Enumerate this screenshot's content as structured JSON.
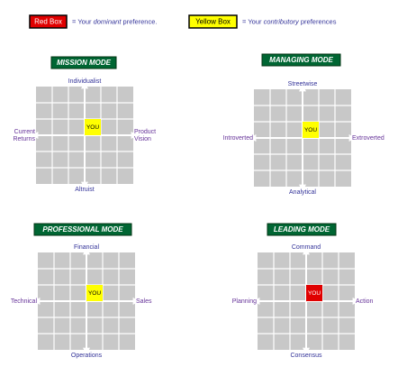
{
  "legend": [
    {
      "box": "Red Box",
      "box_color": "#e00000",
      "text_color": "#ffffff",
      "parts": [
        "= Your ",
        "dominant",
        " preference."
      ]
    },
    {
      "box": "Yellow Box",
      "box_color": "#ffff00",
      "text_color": "#000000",
      "parts": [
        "= Your ",
        "contributory",
        " preferences"
      ]
    }
  ],
  "panels": [
    {
      "title": "MISSION MODE",
      "top": "Individualist",
      "bottom": "Altruist",
      "left": [
        "Current",
        "Returns"
      ],
      "right": [
        "Product",
        "Vision"
      ],
      "you": "YOU",
      "you_color": "#ffff00"
    },
    {
      "title": "MANAGING MODE",
      "top": "Streetwise",
      "bottom": "Analytical",
      "left": [
        "Introverted"
      ],
      "right": [
        "Extroverted"
      ],
      "you": "YOU",
      "you_color": "#ffff00"
    },
    {
      "title": "PROFESSIONAL MODE",
      "top": "Financial",
      "bottom": "Operations",
      "left": [
        "Technical"
      ],
      "right": [
        "Sales"
      ],
      "you": "YOU",
      "you_color": "#ffff00"
    },
    {
      "title": "LEADING MODE",
      "top": "Command",
      "bottom": "Consensus",
      "left": [
        "Planning"
      ],
      "right": [
        "Action"
      ],
      "you": "YOU",
      "you_color": "#e00000"
    }
  ]
}
